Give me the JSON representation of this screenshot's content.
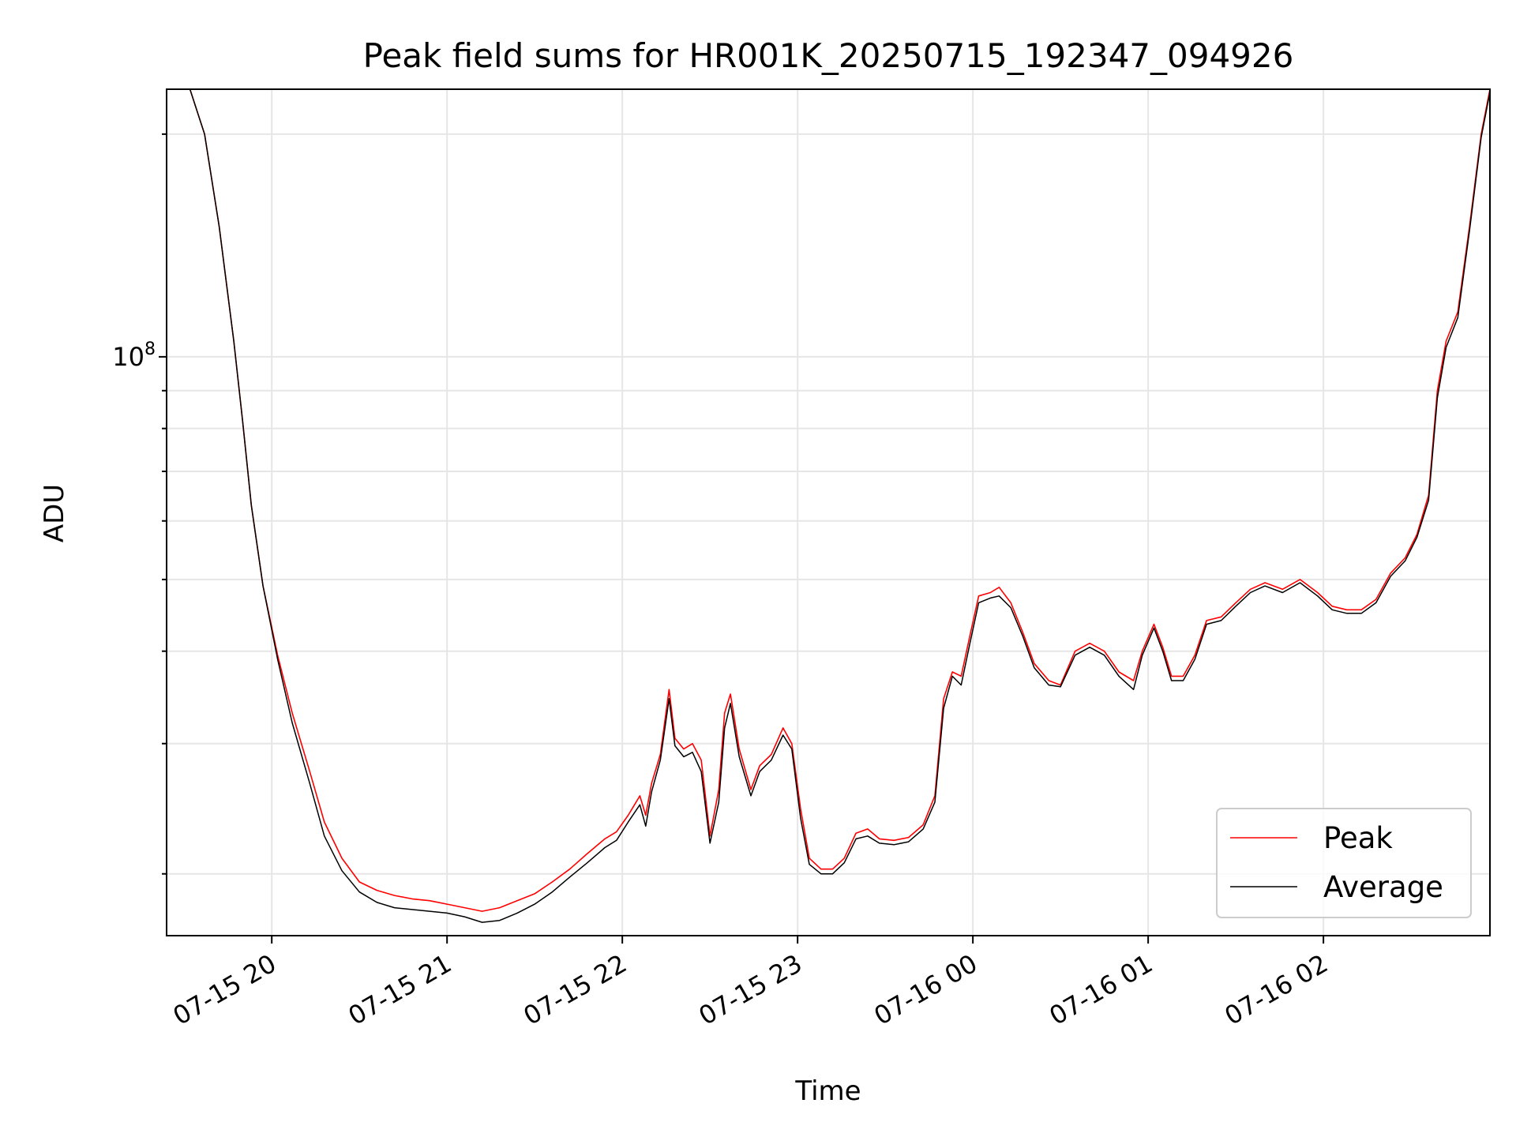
{
  "chart_data": {
    "type": "line",
    "title": "Peak field sums for HR001K_20250715_192347_094926",
    "xlabel": "Time",
    "ylabel": "ADU",
    "yscale": "log",
    "xlim": [
      "2025-07-15 19:24",
      "2025-07-16 02:57"
    ],
    "ylim": [
      16500000,
      230000000
    ],
    "x_ticks": [
      {
        "x": "2025-07-15 20:00",
        "label": "07-15 20"
      },
      {
        "x": "2025-07-15 21:00",
        "label": "07-15 21"
      },
      {
        "x": "2025-07-15 22:00",
        "label": "07-15 22"
      },
      {
        "x": "2025-07-15 23:00",
        "label": "07-15 23"
      },
      {
        "x": "2025-07-16 00:00",
        "label": "07-16 00"
      },
      {
        "x": "2025-07-16 01:00",
        "label": "07-16 01"
      },
      {
        "x": "2025-07-16 02:00",
        "label": "07-16 02"
      }
    ],
    "y_major_ticks": [
      {
        "value": 100000000,
        "label_base": "10",
        "label_exp": "8"
      }
    ],
    "y_minor_ticks": [
      20000000,
      30000000,
      40000000,
      50000000,
      60000000,
      70000000,
      80000000,
      90000000,
      200000000
    ],
    "grid": true,
    "legend_position": "lower right",
    "series": [
      {
        "name": "Peak",
        "color": "#ff0000",
        "points": [
          [
            "2025-07-15 19:24",
            230000000
          ],
          [
            "2025-07-15 19:32",
            230000000
          ],
          [
            "2025-07-15 19:37",
            200000000
          ],
          [
            "2025-07-15 19:42",
            150000000
          ],
          [
            "2025-07-15 19:47",
            105000000
          ],
          [
            "2025-07-15 19:50",
            82000000
          ],
          [
            "2025-07-15 19:53",
            63000000
          ],
          [
            "2025-07-15 19:57",
            49000000
          ],
          [
            "2025-07-15 20:02",
            39500000
          ],
          [
            "2025-07-15 20:07",
            33000000
          ],
          [
            "2025-07-15 20:13",
            27500000
          ],
          [
            "2025-07-15 20:18",
            23500000
          ],
          [
            "2025-07-15 20:24",
            21000000
          ],
          [
            "2025-07-15 20:30",
            19500000
          ],
          [
            "2025-07-15 20:36",
            19000000
          ],
          [
            "2025-07-15 20:42",
            18700000
          ],
          [
            "2025-07-15 20:48",
            18500000
          ],
          [
            "2025-07-15 20:54",
            18400000
          ],
          [
            "2025-07-15 21:00",
            18200000
          ],
          [
            "2025-07-15 21:06",
            18000000
          ],
          [
            "2025-07-15 21:12",
            17800000
          ],
          [
            "2025-07-15 21:18",
            18000000
          ],
          [
            "2025-07-15 21:24",
            18400000
          ],
          [
            "2025-07-15 21:30",
            18800000
          ],
          [
            "2025-07-15 21:36",
            19500000
          ],
          [
            "2025-07-15 21:42",
            20300000
          ],
          [
            "2025-07-15 21:48",
            21300000
          ],
          [
            "2025-07-15 21:54",
            22300000
          ],
          [
            "2025-07-15 21:58",
            22800000
          ],
          [
            "2025-07-15 22:02",
            24000000
          ],
          [
            "2025-07-15 22:06",
            25500000
          ],
          [
            "2025-07-15 22:08",
            24000000
          ],
          [
            "2025-07-15 22:10",
            26500000
          ],
          [
            "2025-07-15 22:13",
            29000000
          ],
          [
            "2025-07-15 22:16",
            35500000
          ],
          [
            "2025-07-15 22:18",
            30500000
          ],
          [
            "2025-07-15 22:21",
            29500000
          ],
          [
            "2025-07-15 22:24",
            30000000
          ],
          [
            "2025-07-15 22:27",
            28500000
          ],
          [
            "2025-07-15 22:30",
            22500000
          ],
          [
            "2025-07-15 22:33",
            26000000
          ],
          [
            "2025-07-15 22:35",
            33000000
          ],
          [
            "2025-07-15 22:37",
            35000000
          ],
          [
            "2025-07-15 22:40",
            29500000
          ],
          [
            "2025-07-15 22:44",
            26000000
          ],
          [
            "2025-07-15 22:47",
            28000000
          ],
          [
            "2025-07-15 22:51",
            29000000
          ],
          [
            "2025-07-15 22:55",
            31500000
          ],
          [
            "2025-07-15 22:58",
            30000000
          ],
          [
            "2025-07-15 23:01",
            24500000
          ],
          [
            "2025-07-15 23:04",
            21000000
          ],
          [
            "2025-07-15 23:08",
            20300000
          ],
          [
            "2025-07-15 23:12",
            20300000
          ],
          [
            "2025-07-15 23:16",
            21000000
          ],
          [
            "2025-07-15 23:20",
            22700000
          ],
          [
            "2025-07-15 23:24",
            23000000
          ],
          [
            "2025-07-15 23:28",
            22300000
          ],
          [
            "2025-07-15 23:33",
            22200000
          ],
          [
            "2025-07-15 23:38",
            22400000
          ],
          [
            "2025-07-15 23:43",
            23300000
          ],
          [
            "2025-07-15 23:47",
            25500000
          ],
          [
            "2025-07-15 23:50",
            34500000
          ],
          [
            "2025-07-15 23:53",
            37500000
          ],
          [
            "2025-07-15 23:56",
            37000000
          ],
          [
            "2025-07-15 23:59",
            42000000
          ],
          [
            "2025-07-16 00:02",
            47500000
          ],
          [
            "2025-07-16 00:06",
            48000000
          ],
          [
            "2025-07-16 00:09",
            48800000
          ],
          [
            "2025-07-16 00:13",
            46500000
          ],
          [
            "2025-07-16 00:17",
            42500000
          ],
          [
            "2025-07-16 00:21",
            38500000
          ],
          [
            "2025-07-16 00:26",
            36500000
          ],
          [
            "2025-07-16 00:30",
            36000000
          ],
          [
            "2025-07-16 00:35",
            40000000
          ],
          [
            "2025-07-16 00:40",
            41000000
          ],
          [
            "2025-07-16 00:45",
            40000000
          ],
          [
            "2025-07-16 00:50",
            37500000
          ],
          [
            "2025-07-16 00:55",
            36500000
          ],
          [
            "2025-07-16 00:58",
            40000000
          ],
          [
            "2025-07-16 01:02",
            43500000
          ],
          [
            "2025-07-16 01:05",
            40500000
          ],
          [
            "2025-07-16 01:08",
            37000000
          ],
          [
            "2025-07-16 01:12",
            37000000
          ],
          [
            "2025-07-16 01:16",
            39500000
          ],
          [
            "2025-07-16 01:20",
            44000000
          ],
          [
            "2025-07-16 01:25",
            44500000
          ],
          [
            "2025-07-16 01:30",
            46500000
          ],
          [
            "2025-07-16 01:35",
            48500000
          ],
          [
            "2025-07-16 01:40",
            49500000
          ],
          [
            "2025-07-16 01:46",
            48500000
          ],
          [
            "2025-07-16 01:52",
            50000000
          ],
          [
            "2025-07-16 01:58",
            48000000
          ],
          [
            "2025-07-16 02:03",
            46000000
          ],
          [
            "2025-07-16 02:08",
            45500000
          ],
          [
            "2025-07-16 02:13",
            45500000
          ],
          [
            "2025-07-16 02:18",
            47000000
          ],
          [
            "2025-07-16 02:23",
            51000000
          ],
          [
            "2025-07-16 02:28",
            53500000
          ],
          [
            "2025-07-16 02:32",
            57500000
          ],
          [
            "2025-07-16 02:36",
            65000000
          ],
          [
            "2025-07-16 02:39",
            90000000
          ],
          [
            "2025-07-16 02:42",
            105000000
          ],
          [
            "2025-07-16 02:46",
            115000000
          ],
          [
            "2025-07-16 02:50",
            150000000
          ],
          [
            "2025-07-16 02:54",
            200000000
          ],
          [
            "2025-07-16 02:57",
            230000000
          ]
        ]
      },
      {
        "name": "Average",
        "color": "#000000",
        "points": [
          [
            "2025-07-15 19:24",
            230000000
          ],
          [
            "2025-07-15 19:32",
            230000000
          ],
          [
            "2025-07-15 19:37",
            200000000
          ],
          [
            "2025-07-15 19:42",
            150000000
          ],
          [
            "2025-07-15 19:47",
            105000000
          ],
          [
            "2025-07-15 19:50",
            82000000
          ],
          [
            "2025-07-15 19:53",
            63000000
          ],
          [
            "2025-07-15 19:57",
            49000000
          ],
          [
            "2025-07-15 20:02",
            39000000
          ],
          [
            "2025-07-15 20:07",
            32000000
          ],
          [
            "2025-07-15 20:13",
            26500000
          ],
          [
            "2025-07-15 20:18",
            22500000
          ],
          [
            "2025-07-15 20:24",
            20200000
          ],
          [
            "2025-07-15 20:30",
            18900000
          ],
          [
            "2025-07-15 20:36",
            18300000
          ],
          [
            "2025-07-15 20:42",
            18000000
          ],
          [
            "2025-07-15 20:48",
            17900000
          ],
          [
            "2025-07-15 20:54",
            17800000
          ],
          [
            "2025-07-15 21:00",
            17700000
          ],
          [
            "2025-07-15 21:06",
            17500000
          ],
          [
            "2025-07-15 21:12",
            17200000
          ],
          [
            "2025-07-15 21:18",
            17300000
          ],
          [
            "2025-07-15 21:24",
            17700000
          ],
          [
            "2025-07-15 21:30",
            18200000
          ],
          [
            "2025-07-15 21:36",
            18900000
          ],
          [
            "2025-07-15 21:42",
            19800000
          ],
          [
            "2025-07-15 21:48",
            20700000
          ],
          [
            "2025-07-15 21:54",
            21700000
          ],
          [
            "2025-07-15 21:58",
            22200000
          ],
          [
            "2025-07-15 22:02",
            23500000
          ],
          [
            "2025-07-15 22:06",
            24800000
          ],
          [
            "2025-07-15 22:08",
            23200000
          ],
          [
            "2025-07-15 22:10",
            25800000
          ],
          [
            "2025-07-15 22:13",
            28500000
          ],
          [
            "2025-07-15 22:16",
            34500000
          ],
          [
            "2025-07-15 22:18",
            29800000
          ],
          [
            "2025-07-15 22:21",
            28800000
          ],
          [
            "2025-07-15 22:24",
            29200000
          ],
          [
            "2025-07-15 22:27",
            27500000
          ],
          [
            "2025-07-15 22:30",
            22000000
          ],
          [
            "2025-07-15 22:33",
            25000000
          ],
          [
            "2025-07-15 22:35",
            31500000
          ],
          [
            "2025-07-15 22:37",
            34000000
          ],
          [
            "2025-07-15 22:40",
            28800000
          ],
          [
            "2025-07-15 22:44",
            25500000
          ],
          [
            "2025-07-15 22:47",
            27500000
          ],
          [
            "2025-07-15 22:51",
            28500000
          ],
          [
            "2025-07-15 22:55",
            30800000
          ],
          [
            "2025-07-15 22:58",
            29500000
          ],
          [
            "2025-07-15 23:01",
            23800000
          ],
          [
            "2025-07-15 23:04",
            20600000
          ],
          [
            "2025-07-15 23:08",
            20000000
          ],
          [
            "2025-07-15 23:12",
            20000000
          ],
          [
            "2025-07-15 23:16",
            20700000
          ],
          [
            "2025-07-15 23:20",
            22300000
          ],
          [
            "2025-07-15 23:24",
            22500000
          ],
          [
            "2025-07-15 23:28",
            22000000
          ],
          [
            "2025-07-15 23:33",
            21900000
          ],
          [
            "2025-07-15 23:38",
            22100000
          ],
          [
            "2025-07-15 23:43",
            23000000
          ],
          [
            "2025-07-15 23:47",
            25000000
          ],
          [
            "2025-07-15 23:50",
            33500000
          ],
          [
            "2025-07-15 23:53",
            37000000
          ],
          [
            "2025-07-15 23:56",
            36000000
          ],
          [
            "2025-07-15 23:59",
            41000000
          ],
          [
            "2025-07-16 00:02",
            46500000
          ],
          [
            "2025-07-16 00:06",
            47200000
          ],
          [
            "2025-07-16 00:09",
            47500000
          ],
          [
            "2025-07-16 00:13",
            45800000
          ],
          [
            "2025-07-16 00:17",
            42000000
          ],
          [
            "2025-07-16 00:21",
            38000000
          ],
          [
            "2025-07-16 00:26",
            36000000
          ],
          [
            "2025-07-16 00:30",
            35800000
          ],
          [
            "2025-07-16 00:35",
            39500000
          ],
          [
            "2025-07-16 00:40",
            40500000
          ],
          [
            "2025-07-16 00:45",
            39500000
          ],
          [
            "2025-07-16 00:50",
            37000000
          ],
          [
            "2025-07-16 00:55",
            35500000
          ],
          [
            "2025-07-16 00:58",
            39500000
          ],
          [
            "2025-07-16 01:02",
            43000000
          ],
          [
            "2025-07-16 01:05",
            40000000
          ],
          [
            "2025-07-16 01:08",
            36500000
          ],
          [
            "2025-07-16 01:12",
            36500000
          ],
          [
            "2025-07-16 01:16",
            39000000
          ],
          [
            "2025-07-16 01:20",
            43500000
          ],
          [
            "2025-07-16 01:25",
            44000000
          ],
          [
            "2025-07-16 01:30",
            46000000
          ],
          [
            "2025-07-16 01:35",
            48000000
          ],
          [
            "2025-07-16 01:40",
            49000000
          ],
          [
            "2025-07-16 01:46",
            48000000
          ],
          [
            "2025-07-16 01:52",
            49500000
          ],
          [
            "2025-07-16 01:58",
            47500000
          ],
          [
            "2025-07-16 02:03",
            45500000
          ],
          [
            "2025-07-16 02:08",
            45000000
          ],
          [
            "2025-07-16 02:13",
            45000000
          ],
          [
            "2025-07-16 02:18",
            46500000
          ],
          [
            "2025-07-16 02:23",
            50500000
          ],
          [
            "2025-07-16 02:28",
            53000000
          ],
          [
            "2025-07-16 02:32",
            57000000
          ],
          [
            "2025-07-16 02:36",
            64000000
          ],
          [
            "2025-07-16 02:39",
            88000000
          ],
          [
            "2025-07-16 02:42",
            103000000
          ],
          [
            "2025-07-16 02:46",
            113000000
          ],
          [
            "2025-07-16 02:50",
            148000000
          ],
          [
            "2025-07-16 02:54",
            198000000
          ],
          [
            "2025-07-16 02:57",
            228000000
          ]
        ]
      }
    ]
  }
}
